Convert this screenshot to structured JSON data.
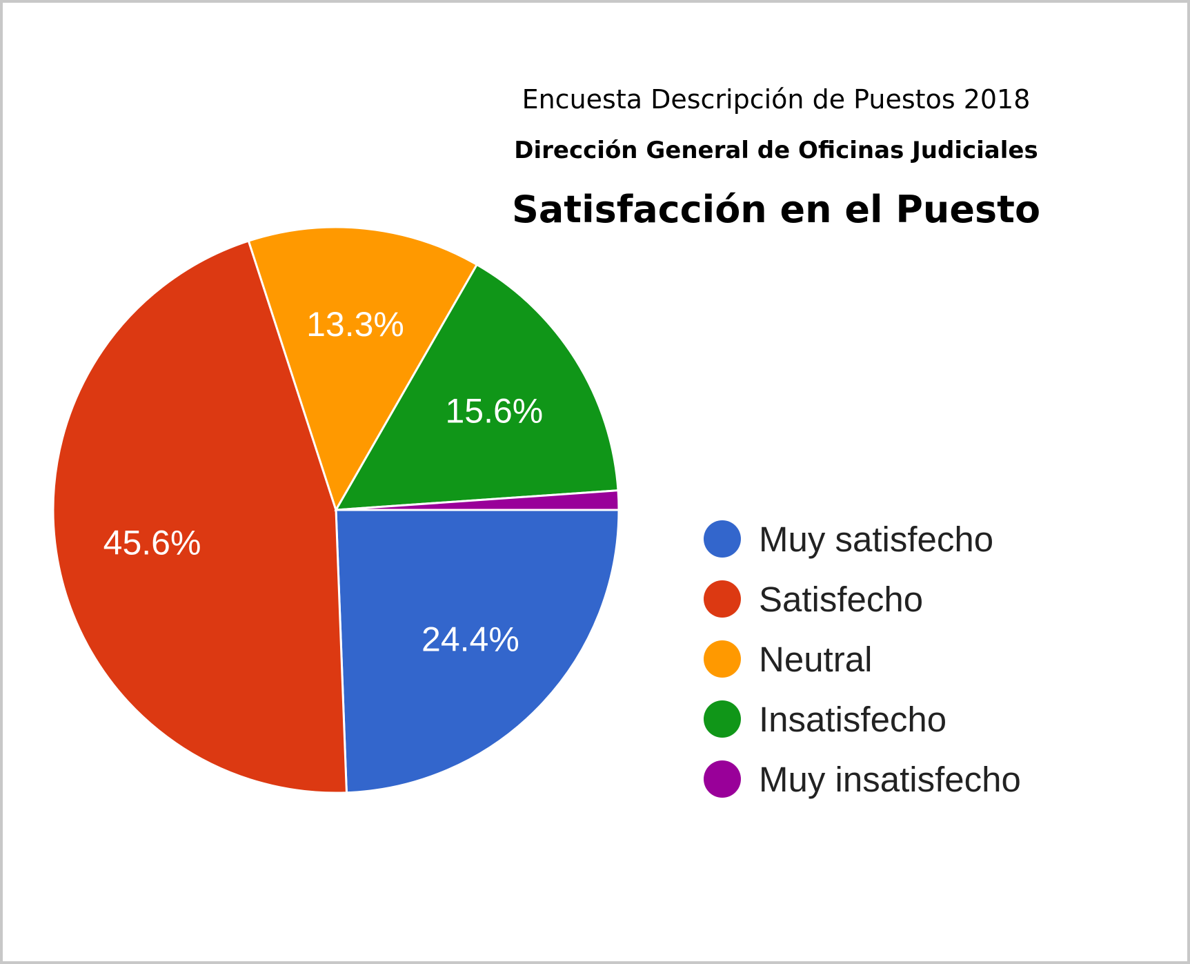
{
  "chart_data": {
    "type": "pie",
    "title": "Satisfacción en el Puesto",
    "subtitles": [
      "Encuesta Descripción de Puestos 2018",
      "Dirección General de Oficinas Judiciales"
    ],
    "categories": [
      "Muy satisfecho",
      "Satisfecho",
      "Neutral",
      "Insatisfecho",
      "Muy insatisfecho"
    ],
    "values": [
      24.4,
      45.6,
      13.3,
      15.6,
      1.1
    ],
    "data_labels": [
      "24.4%",
      "45.6%",
      "13.3%",
      "15.6%",
      ""
    ],
    "colors": [
      "#3366cc",
      "#dc3912",
      "#ff9900",
      "#109618",
      "#990099"
    ],
    "legend_position": "right"
  }
}
